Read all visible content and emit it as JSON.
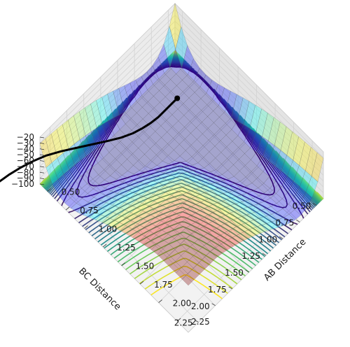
{
  "chart_data": {
    "type": "surface",
    "title": "",
    "xlabel": "AB Distance",
    "ylabel": "BC Distance",
    "zlabel": "",
    "x_ticks": [
      "0.50",
      "0.75",
      "1.00",
      "1.25",
      "1.50",
      "1.75",
      "2.00",
      "2.25"
    ],
    "y_ticks": [
      "0.50",
      "0.75",
      "1.00",
      "1.25",
      "1.50",
      "1.75",
      "2.00",
      "2.25"
    ],
    "z_ticks": [
      "−20",
      "−30",
      "−40",
      "−50",
      "−60",
      "−70",
      "−80",
      "−90",
      "−100"
    ],
    "xlim": [
      0.4,
      2.4
    ],
    "ylim": [
      0.4,
      2.4
    ],
    "zlim": [
      -100,
      -20
    ],
    "grid": true,
    "surface_colormap": "jet (translucent)",
    "contour_colormap": "viridis",
    "trajectory": {
      "color": "#000000",
      "points": [
        [
          0.74,
          0.74
        ],
        [
          0.74,
          0.82
        ],
        [
          0.74,
          0.92
        ],
        [
          0.74,
          1.02
        ],
        [
          0.73,
          1.12
        ],
        [
          0.71,
          1.22
        ],
        [
          0.68,
          1.33
        ],
        [
          0.63,
          1.45
        ],
        [
          0.56,
          1.58
        ],
        [
          0.48,
          1.72
        ],
        [
          0.4,
          1.86
        ],
        [
          0.32,
          2.0
        ],
        [
          0.25,
          2.14
        ],
        [
          0.2,
          2.28
        ],
        [
          0.16,
          2.42
        ],
        [
          0.13,
          2.56
        ],
        [
          0.11,
          2.7
        ],
        [
          0.1,
          2.8
        ]
      ]
    }
  }
}
